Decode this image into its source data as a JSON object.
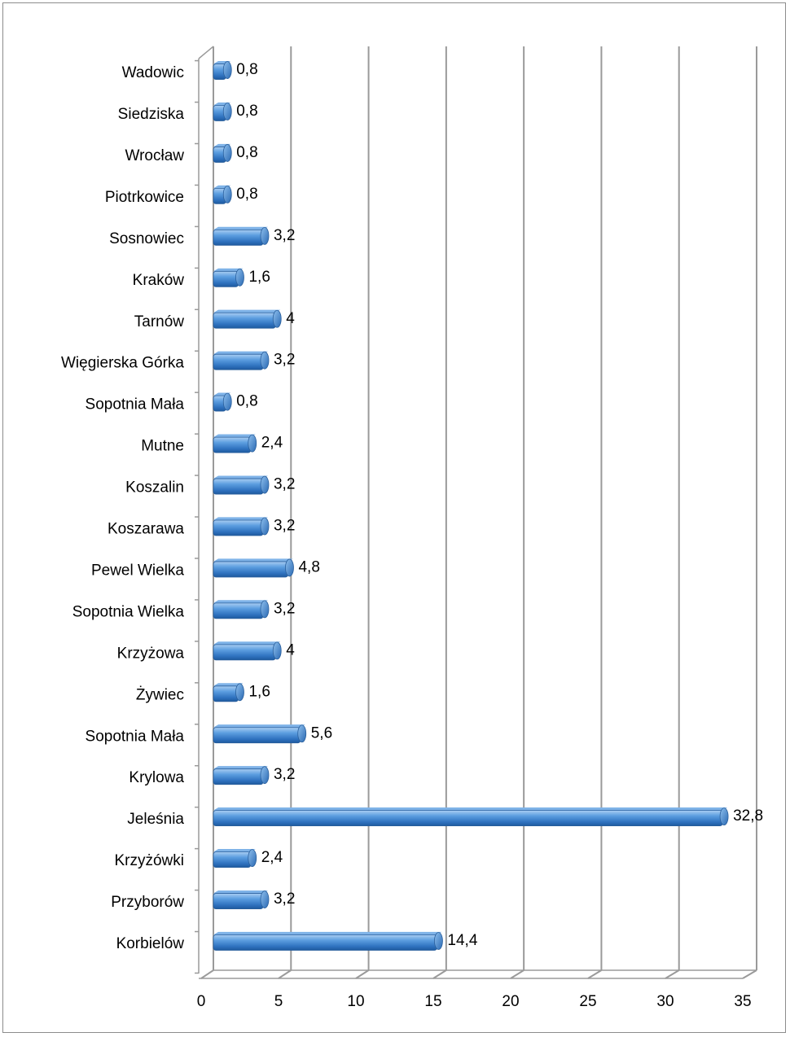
{
  "chart_data": {
    "type": "bar",
    "orientation": "horizontal",
    "style": "3d-cylinder",
    "categories": [
      "Korbielów",
      "Przyborów",
      "Krzyżówki",
      "Jeleśnia",
      "Krylowa",
      "Sopotnia Mała",
      "Żywiec",
      "Krzyżowa",
      "Sopotnia Wielka",
      "Pewel Wielka",
      "Koszarawa",
      "Koszalin",
      "Mutne",
      "Sopotnia Mała",
      "Więgierska Górka",
      "Tarnów",
      "Kraków",
      "Sosnowiec",
      "Piotrkowice",
      "Wrocław",
      "Siedziska",
      "Wadowic"
    ],
    "series": [
      {
        "values": [
          14.4,
          3.2,
          2.4,
          32.8,
          3.2,
          5.6,
          1.6,
          4,
          3.2,
          4.8,
          3.2,
          3.2,
          2.4,
          0.8,
          3.2,
          4,
          1.6,
          3.2,
          0.8,
          0.8,
          0.8,
          0.8
        ],
        "data_labels": [
          "14,4",
          "3,2",
          "2,4",
          "32,8",
          "3,2",
          "5,6",
          "1,6",
          "4",
          "3,2",
          "4,8",
          "3,2",
          "3,2",
          "2,4",
          "0,8",
          "3,2",
          "4",
          "1,6",
          "3,2",
          "0,8",
          "0,8",
          "0,8",
          "0,8"
        ],
        "color": "#4a8fd4"
      }
    ],
    "x_ticks": [
      0,
      5,
      10,
      15,
      20,
      25,
      30,
      35
    ],
    "xlim": [
      0,
      35
    ],
    "title": "",
    "xlabel": "",
    "ylabel": "",
    "grid": true,
    "legend": "none"
  }
}
